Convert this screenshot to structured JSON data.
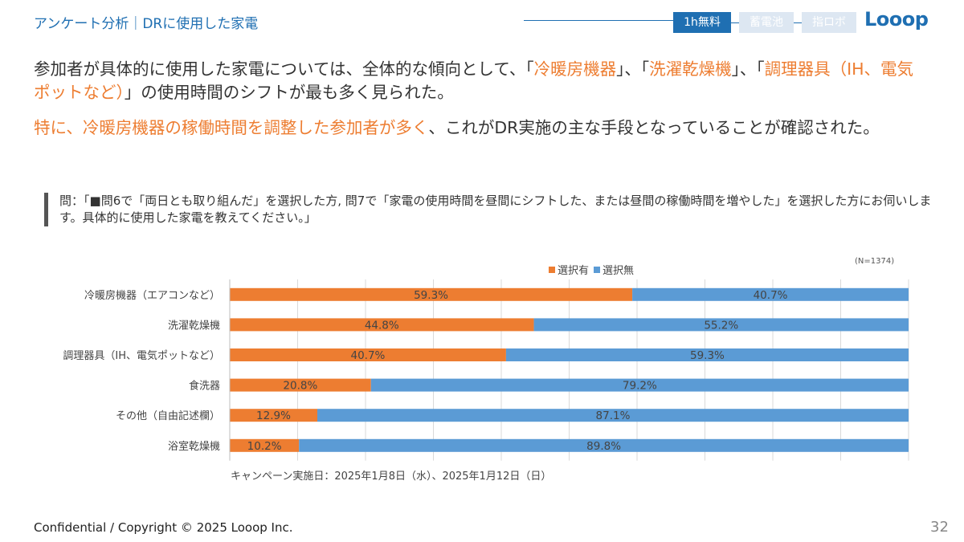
{
  "header": {
    "title": "アンケート分析｜DRに使用した家電",
    "tabs": [
      {
        "label": "1h無料",
        "active": true
      },
      {
        "label": "蓄電池",
        "active": false
      },
      {
        "label": "指ロボ",
        "active": false
      }
    ],
    "logo": "Looop"
  },
  "lead1": {
    "p1": "参加者が具体的に使用した家電については、全体的な傾向として、「",
    "h1": "冷暖房機器",
    "p2": "」、「",
    "h2": "洗濯乾燥機",
    "p3": "」、「",
    "h3": "調理器具（IH、電気ポットなど）",
    "p4": "」の使用時間のシフトが最も多く見られた。"
  },
  "lead2": {
    "h1": "特に、冷暖房機器の稼働時間を調整した参加者が多く",
    "p1": "、これがDR実施の主な手段となっていることが確認された。"
  },
  "question": {
    "prefix": "問：「",
    "square": "■",
    "text": "問6で「両日とも取り組んだ」を選択した方, 問7で「家電の使用時間を昼間にシフトした、または昼間の稼働時間を増やした」を選択した方にお伺いします。具体的に使用した家電を教えてください。」"
  },
  "chart_data": {
    "type": "bar",
    "orientation": "horizontal",
    "stacked": true,
    "categories": [
      "冷暖房機器（エアコンなど）",
      "洗濯乾燥機",
      "調理器具（IH、電気ポットなど）",
      "食洗器",
      "その他（自由記述欄）",
      "浴室乾燥機"
    ],
    "series": [
      {
        "name": "選択有",
        "color": "#ed7d31",
        "values": [
          59.3,
          44.8,
          40.7,
          20.8,
          12.9,
          10.2
        ],
        "labels": [
          "59.3%",
          "44.8%",
          "40.7%",
          "20.8%",
          "12.9%",
          "10.2%"
        ]
      },
      {
        "name": "選択無",
        "color": "#5b9bd5",
        "values": [
          40.7,
          55.2,
          59.3,
          79.2,
          87.1,
          89.8
        ],
        "labels": [
          "40.7%",
          "55.2%",
          "59.3%",
          "79.2%",
          "87.1%",
          "89.8%"
        ]
      }
    ],
    "xlim": [
      0,
      100
    ],
    "grid": true,
    "legend": "top",
    "note": "(N=1374)"
  },
  "campaign": "キャンペーン実施日：2025年1月8日（水）、2025年1月12日（日）",
  "footer": "Confidential / Copyright © 2025 Looop Inc.",
  "page_number": "32"
}
